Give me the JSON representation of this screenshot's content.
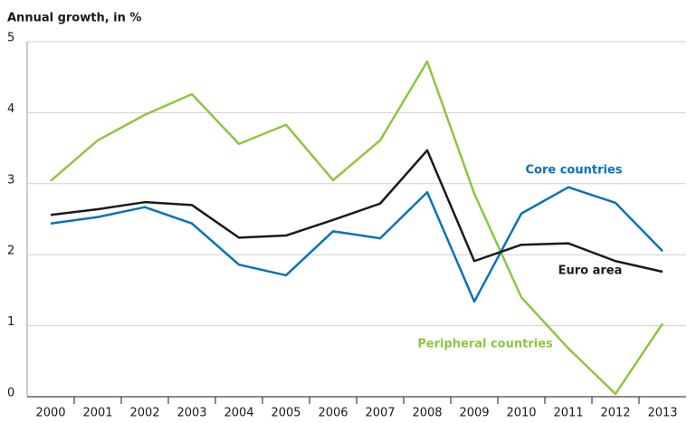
{
  "chart_data": {
    "type": "line",
    "title": "Annual growth, in %",
    "categories": [
      "2000",
      "2001",
      "2002",
      "2003",
      "2004",
      "2005",
      "2006",
      "2007",
      "2008",
      "2009",
      "2010",
      "2011",
      "2012",
      "2013"
    ],
    "series": [
      {
        "name": "Peripheral countries",
        "color": "#8dc63f",
        "values": [
          3.04,
          3.61,
          3.97,
          4.26,
          3.56,
          3.83,
          3.05,
          3.61,
          4.72,
          2.86,
          1.4,
          0.68,
          0.04,
          1.03
        ]
      },
      {
        "name": "Core countries",
        "color": "#0a72b8",
        "values": [
          2.44,
          2.53,
          2.67,
          2.44,
          1.86,
          1.71,
          2.33,
          2.23,
          2.88,
          1.34,
          2.58,
          2.95,
          2.73,
          2.05
        ]
      },
      {
        "name": "Euro area",
        "color": "#1a1a1a",
        "values": [
          2.56,
          2.64,
          2.74,
          2.7,
          2.24,
          2.27,
          2.49,
          2.72,
          3.47,
          1.91,
          2.14,
          2.16,
          1.91,
          1.76
        ]
      }
    ],
    "ylim": [
      0,
      5
    ],
    "yticks": [
      0,
      1,
      2,
      3,
      4,
      5
    ],
    "grid": true
  }
}
